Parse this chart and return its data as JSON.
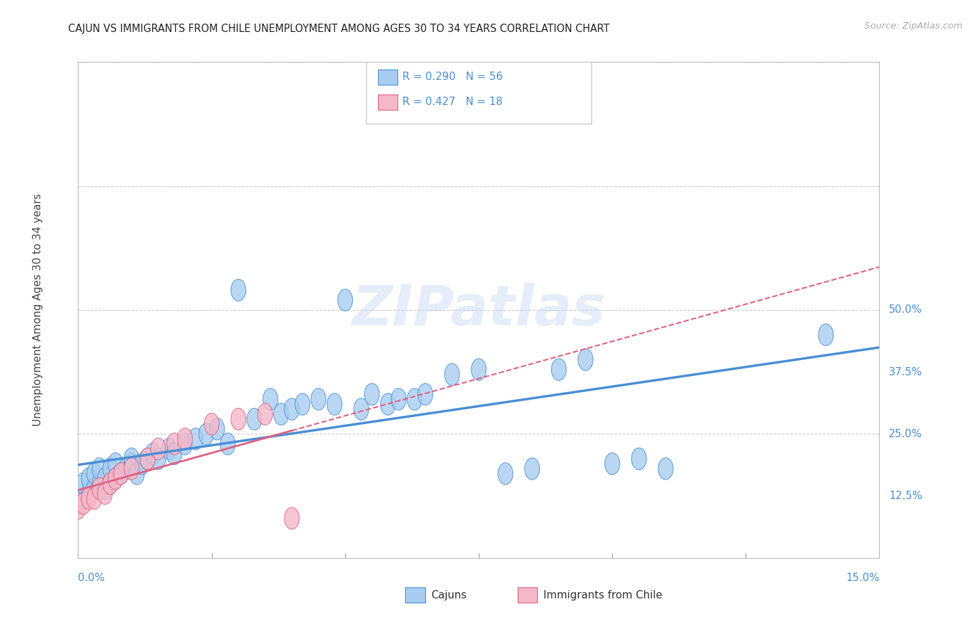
{
  "title": "CAJUN VS IMMIGRANTS FROM CHILE UNEMPLOYMENT AMONG AGES 30 TO 34 YEARS CORRELATION CHART",
  "source": "Source: ZipAtlas.com",
  "ylabel_label": "Unemployment Among Ages 30 to 34 years",
  "cajun_R": 0.29,
  "cajun_N": 56,
  "chile_R": 0.427,
  "chile_N": 18,
  "cajun_color": "#a8cdf0",
  "chile_color": "#f5b8c8",
  "cajun_line_color": "#4a8fd4",
  "chile_line_color": "#e06080",
  "xmin": 0.0,
  "xmax": 0.15,
  "ymin": 0.0,
  "ymax": 0.5,
  "cajun_points_x": [
    0.0,
    0.001,
    0.001,
    0.002,
    0.002,
    0.003,
    0.003,
    0.004,
    0.004,
    0.005,
    0.005,
    0.006,
    0.006,
    0.007,
    0.007,
    0.008,
    0.009,
    0.01,
    0.01,
    0.011,
    0.012,
    0.013,
    0.014,
    0.015,
    0.017,
    0.018,
    0.02,
    0.022,
    0.024,
    0.026,
    0.028,
    0.03,
    0.033,
    0.036,
    0.038,
    0.04,
    0.042,
    0.045,
    0.048,
    0.05,
    0.053,
    0.055,
    0.058,
    0.06,
    0.063,
    0.065,
    0.07,
    0.075,
    0.08,
    0.085,
    0.09,
    0.095,
    0.1,
    0.105,
    0.11,
    0.14
  ],
  "cajun_points_y": [
    0.055,
    0.06,
    0.075,
    0.065,
    0.08,
    0.07,
    0.085,
    0.075,
    0.09,
    0.07,
    0.08,
    0.075,
    0.09,
    0.08,
    0.095,
    0.085,
    0.09,
    0.095,
    0.1,
    0.085,
    0.095,
    0.1,
    0.105,
    0.1,
    0.11,
    0.105,
    0.115,
    0.12,
    0.125,
    0.13,
    0.115,
    0.27,
    0.14,
    0.16,
    0.145,
    0.15,
    0.155,
    0.16,
    0.155,
    0.26,
    0.15,
    0.165,
    0.155,
    0.16,
    0.16,
    0.165,
    0.185,
    0.19,
    0.085,
    0.09,
    0.19,
    0.2,
    0.095,
    0.1,
    0.09,
    0.225
  ],
  "chile_points_x": [
    0.0,
    0.001,
    0.002,
    0.003,
    0.004,
    0.005,
    0.006,
    0.007,
    0.008,
    0.01,
    0.013,
    0.015,
    0.018,
    0.02,
    0.025,
    0.03,
    0.035,
    0.04
  ],
  "chile_points_y": [
    0.05,
    0.055,
    0.06,
    0.06,
    0.07,
    0.065,
    0.075,
    0.08,
    0.085,
    0.09,
    0.1,
    0.11,
    0.115,
    0.12,
    0.135,
    0.14,
    0.145,
    0.04
  ]
}
